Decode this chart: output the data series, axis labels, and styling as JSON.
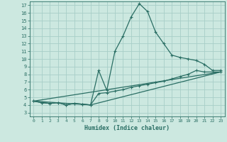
{
  "title": "",
  "xlabel": "Humidex (Indice chaleur)",
  "bg_color": "#cce8e0",
  "grid_color": "#a8cec8",
  "line_color": "#2a6e64",
  "xlim": [
    -0.5,
    23.5
  ],
  "ylim": [
    2.5,
    17.5
  ],
  "xticks": [
    0,
    1,
    2,
    3,
    4,
    5,
    6,
    7,
    8,
    9,
    10,
    11,
    12,
    13,
    14,
    15,
    16,
    17,
    18,
    19,
    20,
    21,
    22,
    23
  ],
  "yticks": [
    3,
    4,
    5,
    6,
    7,
    8,
    9,
    10,
    11,
    12,
    13,
    14,
    15,
    16,
    17
  ],
  "line1_x": [
    0,
    1,
    2,
    3,
    4,
    5,
    6,
    7,
    8,
    9,
    10,
    11,
    12,
    13,
    14,
    15,
    16,
    17,
    18,
    19,
    20,
    21,
    22,
    23
  ],
  "line1_y": [
    4.5,
    4.3,
    4.2,
    4.3,
    4.0,
    4.2,
    4.1,
    4.0,
    8.5,
    5.9,
    11.0,
    13.0,
    15.5,
    17.2,
    16.2,
    13.5,
    12.0,
    10.5,
    10.2,
    10.0,
    9.8,
    9.3,
    8.5,
    8.5
  ],
  "line2_x": [
    0,
    1,
    2,
    3,
    4,
    5,
    6,
    7,
    8,
    9,
    10,
    11,
    12,
    13,
    14,
    15,
    16,
    17,
    18,
    19,
    20,
    21,
    22,
    23
  ],
  "line2_y": [
    4.5,
    4.3,
    4.2,
    4.3,
    4.0,
    4.2,
    4.1,
    4.0,
    5.5,
    5.6,
    5.8,
    6.0,
    6.3,
    6.5,
    6.7,
    6.9,
    7.1,
    7.4,
    7.7,
    8.0,
    8.5,
    8.3,
    8.3,
    8.3
  ],
  "line3_x": [
    0,
    7,
    23
  ],
  "line3_y": [
    4.5,
    4.0,
    8.3
  ],
  "line4_x": [
    0,
    23
  ],
  "line4_y": [
    4.5,
    8.3
  ]
}
